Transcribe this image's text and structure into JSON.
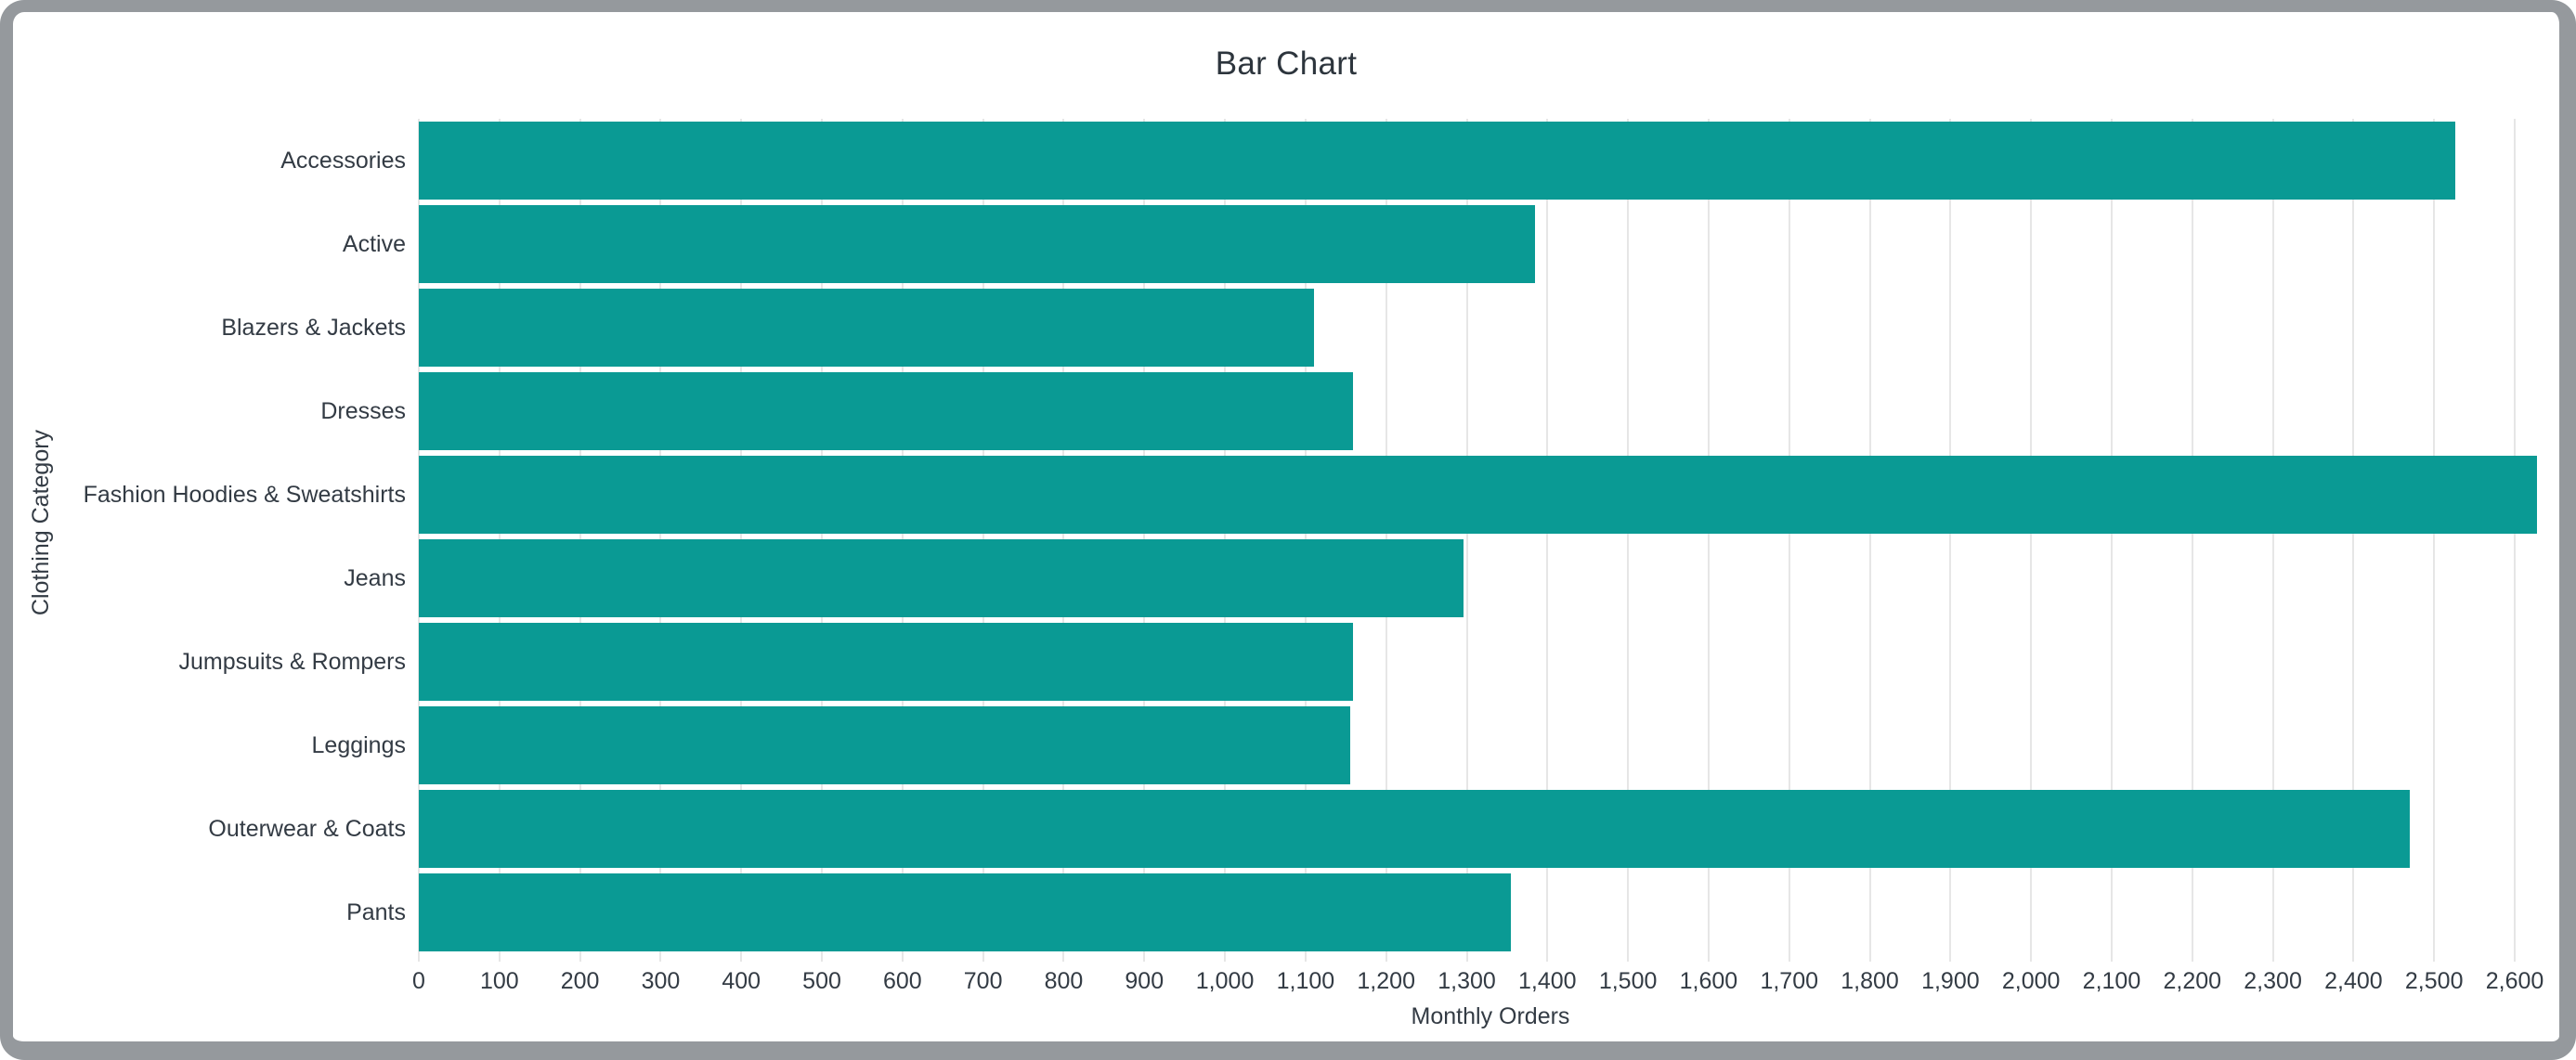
{
  "window": {
    "kind": "browser-rendered chart card with gray rounded frame"
  },
  "colors": {
    "bar": "#0a9a94",
    "frame": "#95999d",
    "grid": "#e6e6e6",
    "text": "#333b44",
    "title": "#2d353d",
    "background": "#ffffff"
  },
  "chart_data": {
    "type": "bar",
    "orientation": "horizontal",
    "title": "Bar Chart",
    "xlabel": "Monthly Orders",
    "ylabel": "Clothing Category",
    "categories": [
      "Accessories",
      "Active",
      "Blazers & Jackets",
      "Dresses",
      "Fashion Hoodies & Sweatshirts",
      "Jeans",
      "Jumpsuits & Rompers",
      "Leggings",
      "Outerwear & Coats",
      "Pants"
    ],
    "values": [
      2526,
      1385,
      1110,
      1159,
      2628,
      1296,
      1159,
      1156,
      2470,
      1355
    ],
    "x_tick_labels": [
      "0",
      "100",
      "200",
      "300",
      "400",
      "500",
      "600",
      "700",
      "800",
      "900",
      "1,000",
      "1,100",
      "1,200",
      "1,300",
      "1,400",
      "1,500",
      "1,600",
      "1,700",
      "1,800",
      "1,900",
      "2,000",
      "2,100",
      "2,200",
      "2,300",
      "2,400",
      "2,500",
      "2,600"
    ],
    "xlim": [
      0,
      2659
    ],
    "grid": true,
    "legend": false
  }
}
